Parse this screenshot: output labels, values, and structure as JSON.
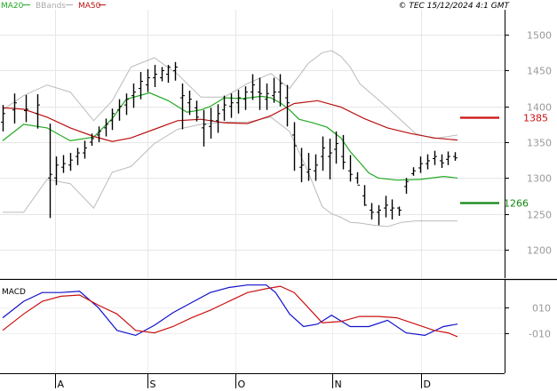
{
  "header": {
    "legend": [
      {
        "label": "MA20",
        "color": "#22aa22"
      },
      {
        "label": "BBands",
        "color": "#aaaaaa"
      },
      {
        "label": "MA50",
        "color": "#bb1111"
      }
    ],
    "copyright": "© TEC 15/12/2024 4:1 GMT"
  },
  "chart_data": [
    {
      "type": "bar",
      "subtype": "ohlc",
      "title": "",
      "ylim": [
        1160,
        1535
      ],
      "y_ticks": [
        1200,
        1250,
        1300,
        1350,
        1400,
        1450,
        1500
      ],
      "x_ticks": [
        "A",
        "S",
        "O",
        "N",
        "D"
      ],
      "grid": true,
      "series": [
        {
          "name": "MA20",
          "color": "#22aa22",
          "x": [
            1,
            10,
            20,
            30,
            40,
            48,
            54,
            64,
            72,
            80,
            86,
            90,
            96,
            104,
            112,
            116,
            120,
            124,
            128,
            134,
            140,
            146,
            150,
            154,
            158,
            162,
            170,
            180,
            190,
            196
          ],
          "values": [
            1352,
            1375,
            1370,
            1352,
            1357,
            1383,
            1410,
            1419,
            1408,
            1392,
            1395,
            1400,
            1412,
            1411,
            1414,
            1412,
            1405,
            1395,
            1382,
            1377,
            1371,
            1356,
            1337,
            1322,
            1307,
            1300,
            1297,
            1298,
            1302,
            1300
          ]
        },
        {
          "name": "MA50",
          "color": "#bb1111",
          "x": [
            1,
            10,
            20,
            30,
            40,
            48,
            56,
            66,
            76,
            86,
            96,
            106,
            116,
            126,
            136,
            146,
            156,
            166,
            176,
            186,
            196
          ],
          "values": [
            1398,
            1396,
            1385,
            1370,
            1358,
            1351,
            1356,
            1368,
            1380,
            1382,
            1377,
            1376,
            1387,
            1404,
            1408,
            1399,
            1383,
            1370,
            1362,
            1356,
            1353
          ]
        },
        {
          "name": "BBands",
          "color": "#bbbbbb",
          "x": [
            1,
            10,
            20,
            30,
            40,
            48,
            56,
            66,
            76,
            86,
            96,
            106,
            116,
            124,
            132,
            138,
            142,
            146,
            150,
            154,
            160,
            166,
            172,
            178,
            186,
            196
          ],
          "values": [
            1395,
            1415,
            1430,
            1420,
            1380,
            1408,
            1455,
            1468,
            1445,
            1413,
            1413,
            1432,
            1446,
            1425,
            1460,
            1475,
            1478,
            1470,
            1455,
            1432,
            1415,
            1398,
            1380,
            1362,
            1355,
            1360
          ]
        },
        {
          "name": "BBands",
          "color": "#bbbbbb",
          "x": [
            1,
            10,
            20,
            30,
            40,
            48,
            56,
            66,
            76,
            86,
            96,
            106,
            116,
            124,
            132,
            138,
            142,
            146,
            150,
            154,
            160,
            166,
            172,
            178,
            186,
            196
          ],
          "values": [
            1252,
            1252,
            1298,
            1292,
            1258,
            1308,
            1316,
            1348,
            1368,
            1375,
            1378,
            1378,
            1385,
            1365,
            1308,
            1260,
            1250,
            1245,
            1238,
            1237,
            1234,
            1232,
            1238,
            1240,
            1240,
            1240
          ]
        }
      ],
      "ohlc": {
        "x": [
          1,
          6,
          11,
          16,
          21,
          24,
          27,
          30,
          33,
          36,
          39,
          42,
          45,
          48,
          51,
          54,
          57,
          60,
          63,
          66,
          69,
          72,
          75,
          78,
          81,
          84,
          87,
          90,
          93,
          96,
          99,
          102,
          105,
          108,
          111,
          114,
          117,
          120,
          123,
          126,
          129,
          132,
          135,
          138,
          141,
          144,
          147,
          150,
          153,
          156,
          159,
          162,
          165,
          168,
          171,
          174,
          177,
          180,
          183,
          186,
          189,
          192,
          195
        ],
        "low": [
          1365,
          1376,
          1378,
          1369,
          1244,
          1290,
          1307,
          1310,
          1318,
          1327,
          1345,
          1350,
          1358,
          1367,
          1380,
          1388,
          1398,
          1410,
          1420,
          1427,
          1435,
          1433,
          1436,
          1368,
          1388,
          1379,
          1344,
          1355,
          1363,
          1380,
          1384,
          1390,
          1395,
          1409,
          1395,
          1395,
          1405,
          1400,
          1372,
          1310,
          1294,
          1296,
          1296,
          1310,
          1298,
          1320,
          1312,
          1295,
          1292,
          1261,
          1242,
          1234,
          1245,
          1242,
          1247,
          1278,
          1303,
          1307,
          1312,
          1318,
          1314,
          1318,
          1324
        ],
        "high": [
          1402,
          1418,
          1416,
          1417,
          1376,
          1330,
          1332,
          1335,
          1342,
          1352,
          1362,
          1372,
          1383,
          1397,
          1410,
          1418,
          1432,
          1448,
          1452,
          1458,
          1455,
          1458,
          1462,
          1432,
          1422,
          1408,
          1395,
          1398,
          1403,
          1415,
          1418,
          1423,
          1428,
          1445,
          1440,
          1432,
          1440,
          1445,
          1430,
          1378,
          1342,
          1335,
          1333,
          1358,
          1355,
          1365,
          1360,
          1332,
          1308,
          1290,
          1265,
          1262,
          1275,
          1270,
          1260,
          1300,
          1315,
          1330,
          1333,
          1338,
          1333,
          1337,
          1336
        ],
        "open": [
          1378,
          1395,
          1394,
          1390,
          1300,
          1300,
          1315,
          1318,
          1330,
          1335,
          1350,
          1360,
          1370,
          1380,
          1395,
          1402,
          1415,
          1425,
          1430,
          1440,
          1440,
          1445,
          1450,
          1412,
          1405,
          1398,
          1370,
          1372,
          1380,
          1395,
          1400,
          1405,
          1410,
          1420,
          1420,
          1410,
          1415,
          1420,
          1412,
          1360,
          1315,
          1308,
          1310,
          1330,
          1330,
          1340,
          1330,
          1310,
          1300,
          1275,
          1255,
          1252,
          1258,
          1255,
          1258,
          1288,
          1306,
          1314,
          1320,
          1327,
          1324,
          1326,
          1330
        ],
        "close": [
          1390,
          1405,
          1396,
          1402,
          1305,
          1318,
          1320,
          1325,
          1335,
          1342,
          1355,
          1365,
          1375,
          1390,
          1400,
          1410,
          1420,
          1435,
          1440,
          1445,
          1450,
          1455,
          1455,
          1415,
          1410,
          1385,
          1375,
          1380,
          1390,
          1402,
          1405,
          1412,
          1420,
          1430,
          1418,
          1418,
          1420,
          1432,
          1405,
          1345,
          1318,
          1312,
          1318,
          1342,
          1335,
          1348,
          1322,
          1305,
          1290,
          1262,
          1252,
          1255,
          1262,
          1258,
          1255,
          1295,
          1310,
          1320,
          1324,
          1330,
          1321,
          1330,
          1328
        ]
      }
    },
    {
      "type": "line",
      "title": "MACD",
      "ylim": [
        -42,
        32
      ],
      "y_ticks": [
        10,
        -10
      ],
      "y_tick_labels": [
        "010",
        "-010"
      ],
      "series": [
        {
          "name": "MACD",
          "color": "#1111cc",
          "x": [
            1,
            10,
            18,
            26,
            34,
            42,
            50,
            58,
            66,
            74,
            82,
            90,
            98,
            106,
            114,
            118,
            124,
            130,
            136,
            142,
            150,
            158,
            166,
            174,
            182,
            190,
            196
          ],
          "values": [
            2,
            15,
            22,
            22,
            23,
            10,
            -8,
            -12,
            -4,
            6,
            14,
            22,
            26,
            28,
            28,
            22,
            5,
            -5,
            -3,
            4,
            -5,
            -5,
            0,
            -10,
            -12,
            -5,
            -3
          ]
        },
        {
          "name": "Signal",
          "color": "#cc1111",
          "x": [
            1,
            10,
            18,
            26,
            34,
            42,
            50,
            58,
            66,
            74,
            82,
            90,
            98,
            106,
            114,
            120,
            126,
            132,
            138,
            146,
            154,
            162,
            170,
            178,
            186,
            192,
            196
          ],
          "values": [
            -8,
            5,
            15,
            19,
            20,
            12,
            5,
            -8,
            -10,
            -5,
            2,
            8,
            15,
            22,
            25,
            27,
            22,
            10,
            -2,
            -1,
            3,
            3,
            2,
            -3,
            -8,
            -10,
            -13
          ]
        }
      ]
    }
  ],
  "annotations": [
    {
      "label": "1385",
      "value": 1385,
      "color": "#cc1111"
    },
    {
      "label": "1266",
      "value": 1266,
      "color": "#118811"
    }
  ]
}
